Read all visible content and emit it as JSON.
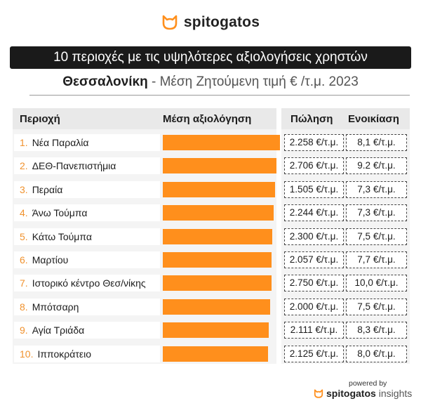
{
  "brand": {
    "name": "spitogatos",
    "accent": "#ff8f1c"
  },
  "header": {
    "title": "10 περιοχές με τις υψηλότερες αξιολογήσεις χρηστών",
    "city": "Θεσσαλονίκη",
    "subtitle_rest": " - Μέση Ζητούμενη τιμή € /τ.μ. 2023"
  },
  "chart_data": {
    "type": "bar",
    "orientation": "horizontal",
    "columns": {
      "area": "Περιοχή",
      "rating": "Μέση αξιολόγηση",
      "sale": "Πώληση",
      "rent": "Ενοικίαση"
    },
    "rows": [
      {
        "rank": "1.",
        "area": "Νέα Παραλία",
        "rating": 0.98,
        "sale": "2.258 €/τ.μ.",
        "rent": "8,1 €/τ.μ."
      },
      {
        "rank": "2.",
        "area": "ΔΕΘ-Πανεπιστήμια",
        "rating": 0.95,
        "sale": "2.706 €/τ.μ.",
        "rent": "9.2 €/τ.μ."
      },
      {
        "rank": "3.",
        "area": "Περαία",
        "rating": 0.94,
        "sale": "1.505 €/τ.μ.",
        "rent": "7,3 €/τ.μ."
      },
      {
        "rank": "4.",
        "area": "Άνω Τούμπα",
        "rating": 0.93,
        "sale": "2.244 €/τ.μ.",
        "rent": "7,3 €/τ.μ."
      },
      {
        "rank": "5.",
        "area": "Κάτω Τούμπα",
        "rating": 0.92,
        "sale": "2.300 €/τ.μ.",
        "rent": "7,5 €/τ.μ."
      },
      {
        "rank": "6.",
        "area": "Μαρτίου",
        "rating": 0.91,
        "sale": "2.057 €/τ.μ.",
        "rent": "7,7 €/τ.μ."
      },
      {
        "rank": "7.",
        "area": "Ιστορικό κέντρο Θεσ/νίκης",
        "rating": 0.91,
        "sale": "2.750 €/τ.μ.",
        "rent": "10,0 €/τ.μ."
      },
      {
        "rank": "8.",
        "area": "Μπότσαρη",
        "rating": 0.9,
        "sale": "2.000 €/τ.μ.",
        "rent": "7,5 €/τ.μ."
      },
      {
        "rank": "9.",
        "area": "Αγία Τριάδα",
        "rating": 0.89,
        "sale": "2.111 €/τ.μ.",
        "rent": "8,3 €/τ.μ."
      },
      {
        "rank": "10.",
        "area": "Ιπποκράτειο",
        "rating": 0.88,
        "sale": "2.125 €/τ.μ.",
        "rent": "8,0 €/τ.μ."
      }
    ]
  },
  "footer": {
    "powered": "powered by",
    "brand_bold": "spitogatos",
    "brand_light": " insights"
  }
}
